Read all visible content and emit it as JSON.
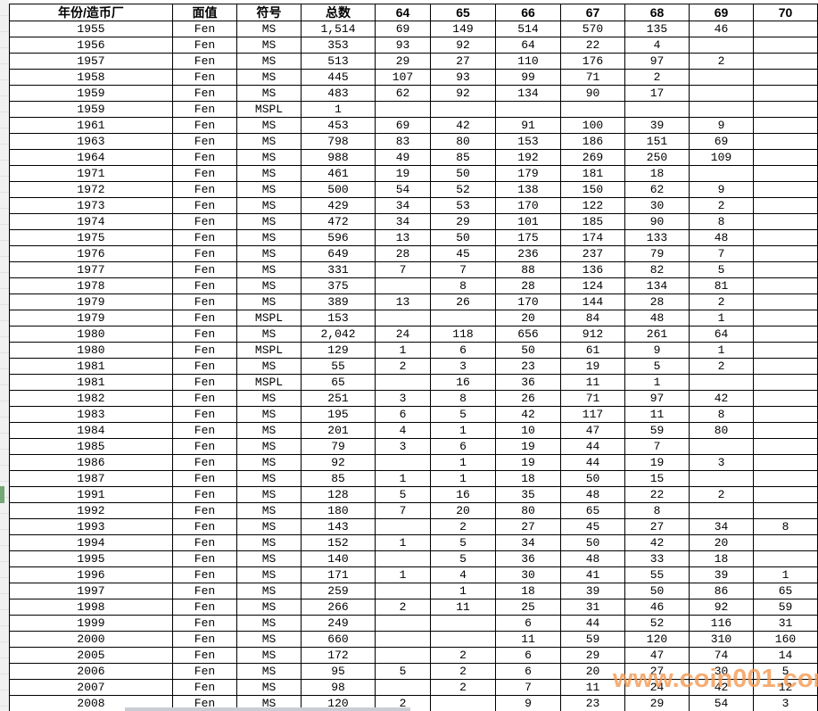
{
  "sheet": {
    "columns": [
      "年份/造币厂",
      "面值",
      "符号",
      "总数",
      "64",
      "65",
      "66",
      "67",
      "68",
      "69",
      "70"
    ],
    "rows": [
      [
        "1955",
        "Fen",
        "MS",
        "1,514",
        "69",
        "149",
        "514",
        "570",
        "135",
        "46",
        ""
      ],
      [
        "1956",
        "Fen",
        "MS",
        "353",
        "93",
        "92",
        "64",
        "22",
        "4",
        "",
        ""
      ],
      [
        "1957",
        "Fen",
        "MS",
        "513",
        "29",
        "27",
        "110",
        "176",
        "97",
        "2",
        ""
      ],
      [
        "1958",
        "Fen",
        "MS",
        "445",
        "107",
        "93",
        "99",
        "71",
        "2",
        "",
        ""
      ],
      [
        "1959",
        "Fen",
        "MS",
        "483",
        "62",
        "92",
        "134",
        "90",
        "17",
        "",
        ""
      ],
      [
        "1959",
        "Fen",
        "MSPL",
        "1",
        "",
        "",
        "",
        "",
        "",
        "",
        ""
      ],
      [
        "1961",
        "Fen",
        "MS",
        "453",
        "69",
        "42",
        "91",
        "100",
        "39",
        "9",
        ""
      ],
      [
        "1963",
        "Fen",
        "MS",
        "798",
        "83",
        "80",
        "153",
        "186",
        "151",
        "69",
        ""
      ],
      [
        "1964",
        "Fen",
        "MS",
        "988",
        "49",
        "85",
        "192",
        "269",
        "250",
        "109",
        ""
      ],
      [
        "1971",
        "Fen",
        "MS",
        "461",
        "19",
        "50",
        "179",
        "181",
        "18",
        "",
        ""
      ],
      [
        "1972",
        "Fen",
        "MS",
        "500",
        "54",
        "52",
        "138",
        "150",
        "62",
        "9",
        ""
      ],
      [
        "1973",
        "Fen",
        "MS",
        "429",
        "34",
        "53",
        "170",
        "122",
        "30",
        "2",
        ""
      ],
      [
        "1974",
        "Fen",
        "MS",
        "472",
        "34",
        "29",
        "101",
        "185",
        "90",
        "8",
        ""
      ],
      [
        "1975",
        "Fen",
        "MS",
        "596",
        "13",
        "50",
        "175",
        "174",
        "133",
        "48",
        ""
      ],
      [
        "1976",
        "Fen",
        "MS",
        "649",
        "28",
        "45",
        "236",
        "237",
        "79",
        "7",
        ""
      ],
      [
        "1977",
        "Fen",
        "MS",
        "331",
        "7",
        "7",
        "88",
        "136",
        "82",
        "5",
        ""
      ],
      [
        "1978",
        "Fen",
        "MS",
        "375",
        "",
        "8",
        "28",
        "124",
        "134",
        "81",
        ""
      ],
      [
        "1979",
        "Fen",
        "MS",
        "389",
        "13",
        "26",
        "170",
        "144",
        "28",
        "2",
        ""
      ],
      [
        "1979",
        "Fen",
        "MSPL",
        "153",
        "",
        "",
        "20",
        "84",
        "48",
        "1",
        ""
      ],
      [
        "1980",
        "Fen",
        "MS",
        "2,042",
        "24",
        "118",
        "656",
        "912",
        "261",
        "64",
        ""
      ],
      [
        "1980",
        "Fen",
        "MSPL",
        "129",
        "1",
        "6",
        "50",
        "61",
        "9",
        "1",
        ""
      ],
      [
        "1981",
        "Fen",
        "MS",
        "55",
        "2",
        "3",
        "23",
        "19",
        "5",
        "2",
        ""
      ],
      [
        "1981",
        "Fen",
        "MSPL",
        "65",
        "",
        "16",
        "36",
        "11",
        "1",
        "",
        ""
      ],
      [
        "1982",
        "Fen",
        "MS",
        "251",
        "3",
        "8",
        "26",
        "71",
        "97",
        "42",
        ""
      ],
      [
        "1983",
        "Fen",
        "MS",
        "195",
        "6",
        "5",
        "42",
        "117",
        "11",
        "8",
        ""
      ],
      [
        "1984",
        "Fen",
        "MS",
        "201",
        "4",
        "1",
        "10",
        "47",
        "59",
        "80",
        ""
      ],
      [
        "1985",
        "Fen",
        "MS",
        "79",
        "3",
        "6",
        "19",
        "44",
        "7",
        "",
        ""
      ],
      [
        "1986",
        "Fen",
        "MS",
        "92",
        "",
        "1",
        "19",
        "44",
        "19",
        "3",
        ""
      ],
      [
        "1987",
        "Fen",
        "MS",
        "85",
        "1",
        "1",
        "18",
        "50",
        "15",
        "",
        ""
      ],
      [
        "1991",
        "Fen",
        "MS",
        "128",
        "5",
        "16",
        "35",
        "48",
        "22",
        "2",
        ""
      ],
      [
        "1992",
        "Fen",
        "MS",
        "180",
        "7",
        "20",
        "80",
        "65",
        "8",
        "",
        ""
      ],
      [
        "1993",
        "Fen",
        "MS",
        "143",
        "",
        "2",
        "27",
        "45",
        "27",
        "34",
        "8"
      ],
      [
        "1994",
        "Fen",
        "MS",
        "152",
        "1",
        "5",
        "34",
        "50",
        "42",
        "20",
        ""
      ],
      [
        "1995",
        "Fen",
        "MS",
        "140",
        "",
        "5",
        "36",
        "48",
        "33",
        "18",
        ""
      ],
      [
        "1996",
        "Fen",
        "MS",
        "171",
        "1",
        "4",
        "30",
        "41",
        "55",
        "39",
        "1"
      ],
      [
        "1997",
        "Fen",
        "MS",
        "259",
        "",
        "1",
        "18",
        "39",
        "50",
        "86",
        "65"
      ],
      [
        "1998",
        "Fen",
        "MS",
        "266",
        "2",
        "11",
        "25",
        "31",
        "46",
        "92",
        "59"
      ],
      [
        "1999",
        "Fen",
        "MS",
        "249",
        "",
        "",
        "6",
        "44",
        "52",
        "116",
        "31"
      ],
      [
        "2000",
        "Fen",
        "MS",
        "660",
        "",
        "",
        "11",
        "59",
        "120",
        "310",
        "160"
      ],
      [
        "2005",
        "Fen",
        "MS",
        "172",
        "",
        "2",
        "6",
        "29",
        "47",
        "74",
        "14"
      ],
      [
        "2006",
        "Fen",
        "MS",
        "95",
        "5",
        "2",
        "6",
        "20",
        "27",
        "30",
        "5"
      ],
      [
        "2007",
        "Fen",
        "MS",
        "98",
        "",
        "2",
        "7",
        "11",
        "24",
        "42",
        "12"
      ],
      [
        "2008",
        "Fen",
        "MS",
        "120",
        "2",
        "",
        "9",
        "23",
        "29",
        "54",
        "3"
      ]
    ]
  },
  "watermark": {
    "text": "www.coin001.com",
    "color": "#f4974e"
  },
  "selection": {
    "marker_row_year": "1991",
    "marker_color": "#74a874"
  }
}
